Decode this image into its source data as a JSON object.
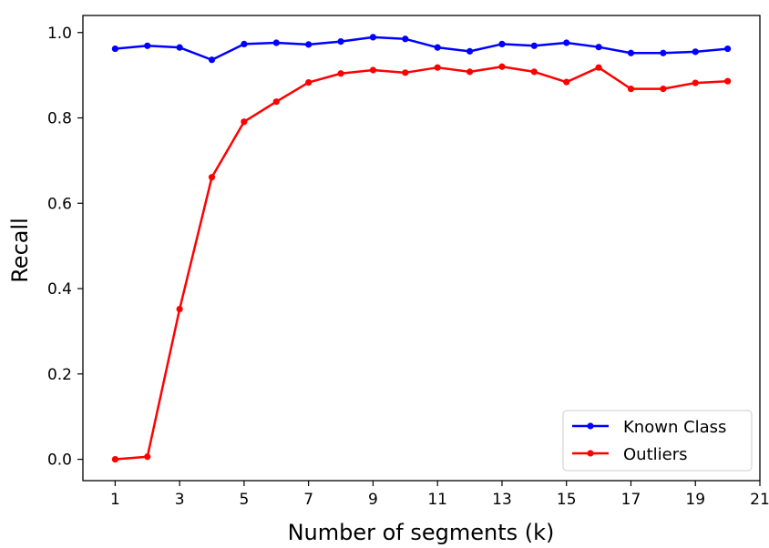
{
  "chart_data": {
    "type": "line",
    "xlabel": "Number of segments (k)",
    "ylabel": "Recall",
    "xlim": [
      0,
      21
    ],
    "ylim": [
      -0.05,
      1.04
    ],
    "xticks": [
      1,
      3,
      5,
      7,
      9,
      11,
      13,
      15,
      17,
      19,
      21
    ],
    "yticks": [
      0.0,
      0.2,
      0.4,
      0.6,
      0.8,
      1.0
    ],
    "grid": false,
    "legend_position": "lower-right",
    "x": [
      1,
      2,
      3,
      4,
      5,
      6,
      7,
      8,
      9,
      10,
      11,
      12,
      13,
      14,
      15,
      16,
      17,
      18,
      19,
      20
    ],
    "series": [
      {
        "name": "Known Class",
        "color": "#0000ff",
        "values": [
          0.962,
          0.969,
          0.965,
          0.936,
          0.973,
          0.976,
          0.972,
          0.979,
          0.989,
          0.985,
          0.965,
          0.956,
          0.973,
          0.969,
          0.976,
          0.966,
          0.952,
          0.952,
          0.955,
          0.962
        ]
      },
      {
        "name": "Outliers",
        "color": "#ff0000",
        "values": [
          0.0,
          0.006,
          0.352,
          0.661,
          0.791,
          0.838,
          0.883,
          0.904,
          0.912,
          0.906,
          0.918,
          0.908,
          0.92,
          0.908,
          0.884,
          0.918,
          0.868,
          0.868,
          0.882,
          0.886
        ]
      }
    ]
  }
}
